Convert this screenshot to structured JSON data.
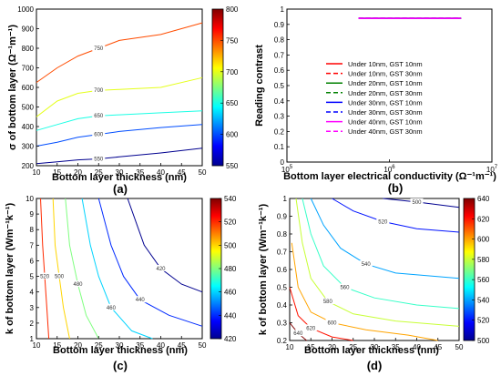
{
  "chart_data": [
    {
      "id": "a",
      "type": "contour",
      "panel_label": "(a)",
      "xlabel": "Bottom layer thickness (nm)",
      "ylabel": "σ of bottom layer (Ω⁻¹m⁻¹)",
      "xlim": [
        10,
        50
      ],
      "ylim": [
        200,
        1000
      ],
      "xticks": [
        10,
        15,
        20,
        25,
        30,
        35,
        40,
        45,
        50
      ],
      "yticks": [
        200,
        300,
        400,
        500,
        600,
        700,
        800,
        900,
        1000
      ],
      "colorbar": {
        "min": 550,
        "max": 800,
        "ticks": [
          550,
          600,
          650,
          700,
          750,
          800
        ]
      },
      "contours": [
        {
          "level": 750,
          "label": "750",
          "points": [
            [
              10,
              625
            ],
            [
              15,
              700
            ],
            [
              20,
              760
            ],
            [
              25,
              800
            ],
            [
              30,
              840
            ],
            [
              40,
              870
            ],
            [
              50,
              930
            ]
          ]
        },
        {
          "level": 700,
          "label": "700",
          "points": [
            [
              10,
              450
            ],
            [
              15,
              530
            ],
            [
              20,
              570
            ],
            [
              25,
              585
            ],
            [
              30,
              590
            ],
            [
              40,
              600
            ],
            [
              50,
              650
            ]
          ]
        },
        {
          "level": 650,
          "label": "650",
          "points": [
            [
              10,
              380
            ],
            [
              15,
              410
            ],
            [
              20,
              440
            ],
            [
              25,
              455
            ],
            [
              30,
              460
            ],
            [
              40,
              470
            ],
            [
              50,
              480
            ]
          ]
        },
        {
          "level": 600,
          "label": "600",
          "points": [
            [
              10,
              300
            ],
            [
              15,
              320
            ],
            [
              20,
              345
            ],
            [
              25,
              360
            ],
            [
              30,
              375
            ],
            [
              40,
              395
            ],
            [
              50,
              410
            ]
          ]
        },
        {
          "level": 550,
          "label": "550",
          "points": [
            [
              10,
              210
            ],
            [
              15,
              220
            ],
            [
              20,
              230
            ],
            [
              25,
              235
            ],
            [
              30,
              245
            ],
            [
              40,
              265
            ],
            [
              50,
              290
            ]
          ]
        }
      ],
      "grid": false
    },
    {
      "id": "b",
      "type": "line",
      "panel_label": "(b)",
      "xlabel": "Bottom  layer electrical conductivity (Ω⁻¹m⁻¹)",
      "ylabel": "Reading contrast",
      "xscale": "log",
      "xlim": [
        100000,
        10000000
      ],
      "ylim": [
        0,
        1
      ],
      "xticks": [
        {
          "value": 100000,
          "base": "10",
          "exp": "5"
        },
        {
          "value": 1000000,
          "base": "10",
          "exp": "6"
        },
        {
          "value": 10000000,
          "base": "10",
          "exp": "7"
        }
      ],
      "yticks": [
        0,
        0.1,
        0.2,
        0.3,
        0.4,
        0.5,
        0.6,
        0.7,
        0.8,
        0.9,
        1
      ],
      "legend_position": "right",
      "series": [
        {
          "name": "Under 10nm, GST 10nm",
          "color": "#ff0000",
          "dash": false,
          "x": [
            500000,
            5000000
          ],
          "y": [
            0.94,
            0.94
          ]
        },
        {
          "name": "Under 10nm, GST 30nm",
          "color": "#ff0000",
          "dash": true,
          "x": [
            500000,
            5000000
          ],
          "y": [
            0.94,
            0.94
          ]
        },
        {
          "name": "Under 20nm, GST 10nm",
          "color": "#008000",
          "dash": false,
          "x": [
            500000,
            5000000
          ],
          "y": [
            0.94,
            0.94
          ]
        },
        {
          "name": "Under 20nm, GST 30nm",
          "color": "#008000",
          "dash": true,
          "x": [
            500000,
            5000000
          ],
          "y": [
            0.94,
            0.94
          ]
        },
        {
          "name": "Under 30nm, GST 10nm",
          "color": "#0000ff",
          "dash": false,
          "x": [
            500000,
            5000000
          ],
          "y": [
            0.94,
            0.94
          ]
        },
        {
          "name": "Under 30nm, GST 30nm",
          "color": "#0000ff",
          "dash": true,
          "x": [
            500000,
            5000000
          ],
          "y": [
            0.94,
            0.94
          ]
        },
        {
          "name": "Under 40nm, GST 10nm",
          "color": "#ff00ff",
          "dash": false,
          "x": [
            500000,
            5000000
          ],
          "y": [
            0.94,
            0.94
          ]
        },
        {
          "name": "Under 40nm, GST 30nm",
          "color": "#ff00ff",
          "dash": true,
          "x": [
            500000,
            5000000
          ],
          "y": [
            0.94,
            0.94
          ]
        }
      ],
      "grid": false
    },
    {
      "id": "c",
      "type": "contour",
      "panel_label": "(c)",
      "xlabel": "Bottom layer thickness (nm)",
      "ylabel": "k of bottom layer (Wm⁻¹k⁻¹)",
      "xlim": [
        10,
        50
      ],
      "ylim": [
        1,
        10
      ],
      "xticks": [
        10,
        15,
        20,
        25,
        30,
        35,
        40,
        45,
        50
      ],
      "yticks": [
        1,
        2,
        3,
        4,
        5,
        6,
        7,
        8,
        9,
        10
      ],
      "colorbar": {
        "min": 420,
        "max": 540,
        "ticks": [
          420,
          440,
          460,
          480,
          500,
          520,
          540
        ]
      },
      "contours": [
        {
          "level": 520,
          "label": "520",
          "points": [
            [
              11,
              10
            ],
            [
              11.5,
              7
            ],
            [
              12,
              5
            ],
            [
              12.5,
              3
            ],
            [
              13,
              1
            ]
          ]
        },
        {
          "level": 500,
          "label": "500",
          "points": [
            [
              14,
              10
            ],
            [
              14.5,
              7
            ],
            [
              15.5,
              5
            ],
            [
              16.5,
              3
            ],
            [
              18,
              1
            ]
          ]
        },
        {
          "level": 480,
          "label": "480",
          "points": [
            [
              17,
              10
            ],
            [
              18,
              7
            ],
            [
              20,
              4.5
            ],
            [
              22,
              2.5
            ],
            [
              25,
              1
            ]
          ]
        },
        {
          "level": 460,
          "label": "460",
          "points": [
            [
              21,
              10
            ],
            [
              23,
              7
            ],
            [
              25,
              5
            ],
            [
              28,
              3
            ],
            [
              33,
              1.5
            ],
            [
              38,
              1
            ]
          ]
        },
        {
          "level": 440,
          "label": "440",
          "points": [
            [
              25,
              10
            ],
            [
              28,
              7
            ],
            [
              31,
              5
            ],
            [
              35,
              3.5
            ],
            [
              42,
              2.5
            ],
            [
              50,
              1.8
            ]
          ]
        },
        {
          "level": 420,
          "label": "420",
          "points": [
            [
              32,
              10
            ],
            [
              36,
              7
            ],
            [
              40,
              5.5
            ],
            [
              45,
              4.5
            ],
            [
              50,
              4
            ]
          ]
        }
      ],
      "grid": false
    },
    {
      "id": "d",
      "type": "contour",
      "panel_label": "(d)",
      "xlabel": "Bottom layer thickness (nm)",
      "ylabel": "k of bottom layer (Wm⁻¹k⁻¹)",
      "xlim": [
        10,
        50
      ],
      "ylim": [
        0.2,
        1
      ],
      "xticks": [
        10,
        15,
        20,
        25,
        30,
        35,
        40,
        45,
        50
      ],
      "yticks": [
        0.2,
        0.3,
        0.4,
        0.5,
        0.6,
        0.7,
        0.8,
        0.9,
        1
      ],
      "colorbar": {
        "min": 500,
        "max": 640,
        "ticks": [
          500,
          520,
          540,
          560,
          580,
          600,
          620,
          640
        ]
      },
      "contours": [
        {
          "level": 500,
          "label": "500",
          "points": [
            [
              32,
              1
            ],
            [
              40,
              0.98
            ],
            [
              50,
              0.95
            ]
          ]
        },
        {
          "level": 520,
          "label": "520",
          "points": [
            [
              20,
              1
            ],
            [
              25,
              0.93
            ],
            [
              32,
              0.87
            ],
            [
              40,
              0.83
            ],
            [
              50,
              0.81
            ]
          ]
        },
        {
          "level": 540,
          "label": "540",
          "points": [
            [
              15,
              1
            ],
            [
              18,
              0.85
            ],
            [
              22,
              0.72
            ],
            [
              28,
              0.63
            ],
            [
              35,
              0.58
            ],
            [
              50,
              0.55
            ]
          ]
        },
        {
          "level": 560,
          "label": "560",
          "points": [
            [
              13,
              1
            ],
            [
              15,
              0.8
            ],
            [
              18,
              0.62
            ],
            [
              23,
              0.5
            ],
            [
              30,
              0.44
            ],
            [
              40,
              0.4
            ],
            [
              50,
              0.38
            ]
          ]
        },
        {
          "level": 580,
          "label": "580",
          "points": [
            [
              11.5,
              1
            ],
            [
              13,
              0.75
            ],
            [
              15,
              0.55
            ],
            [
              19,
              0.42
            ],
            [
              25,
              0.35
            ],
            [
              35,
              0.31
            ],
            [
              50,
              0.28
            ]
          ]
        },
        {
          "level": 600,
          "label": "600",
          "points": [
            [
              10.5,
              0.75
            ],
            [
              12,
              0.5
            ],
            [
              15,
              0.36
            ],
            [
              20,
              0.3
            ],
            [
              28,
              0.26
            ],
            [
              38,
              0.23
            ],
            [
              45,
              0.2
            ]
          ]
        },
        {
          "level": 620,
          "label": "620",
          "points": [
            [
              10,
              0.5
            ],
            [
              12,
              0.34
            ],
            [
              15,
              0.27
            ],
            [
              20,
              0.22
            ],
            [
              25,
              0.2
            ]
          ]
        },
        {
          "level": 640,
          "label": "640",
          "points": [
            [
              10,
              0.3
            ],
            [
              12,
              0.24
            ],
            [
              14,
              0.2
            ]
          ]
        }
      ],
      "grid": false
    }
  ]
}
